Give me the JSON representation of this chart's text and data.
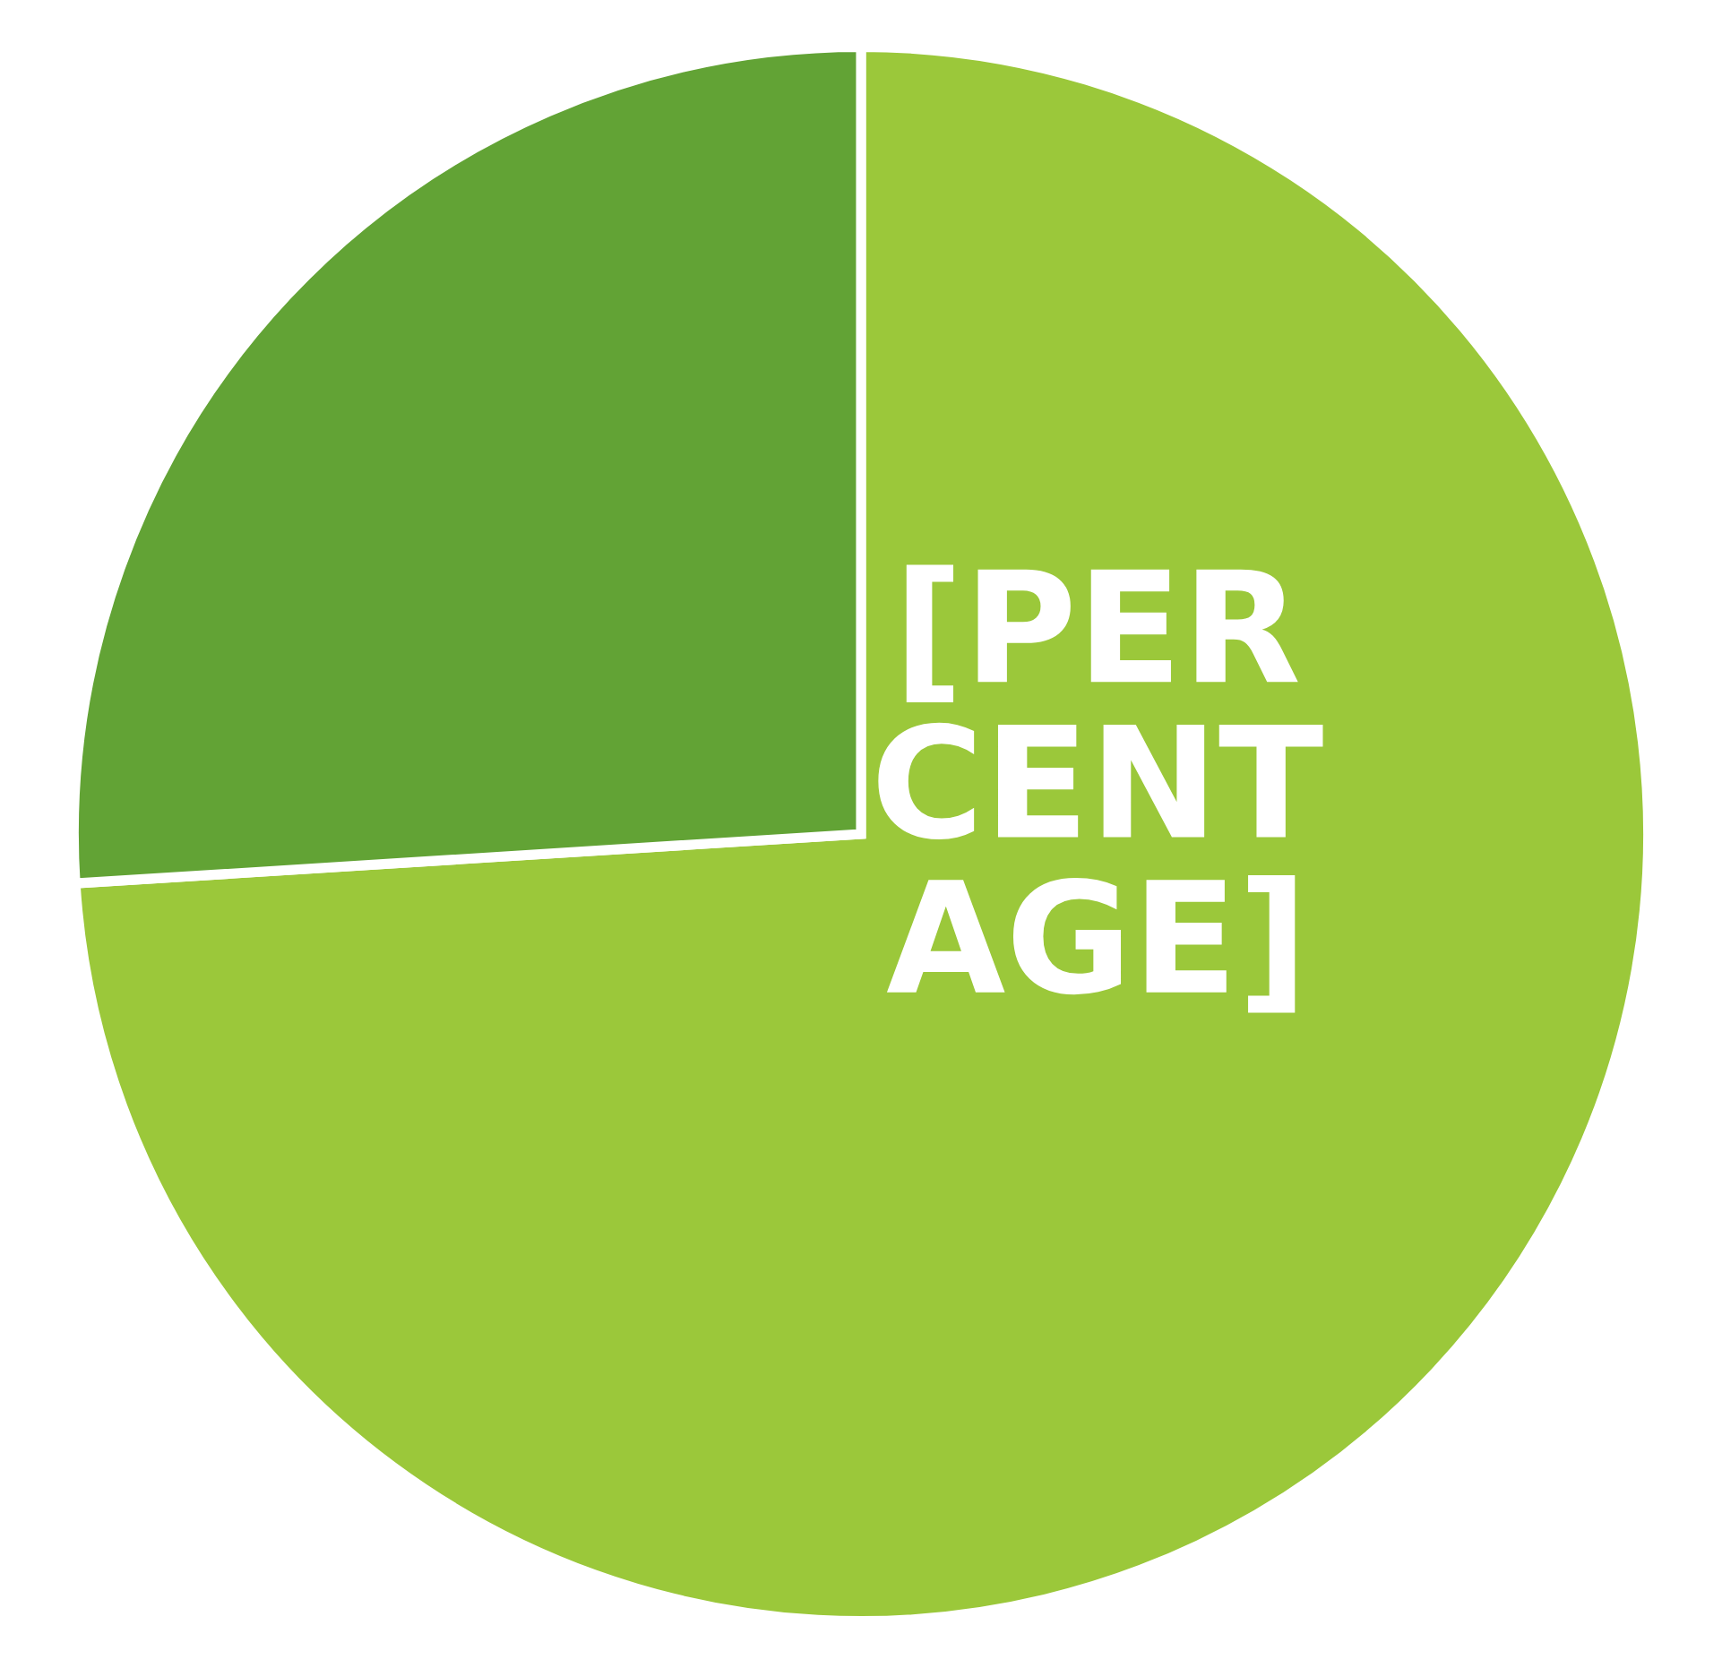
{
  "chart_data": {
    "type": "pie",
    "categories": [
      null,
      null
    ],
    "values": [
      74,
      26
    ],
    "colors": [
      "#9bc83a",
      "#62a335"
    ],
    "value_labels": [
      "[PER\nCENT\nAGE]",
      null
    ],
    "legend": false
  }
}
